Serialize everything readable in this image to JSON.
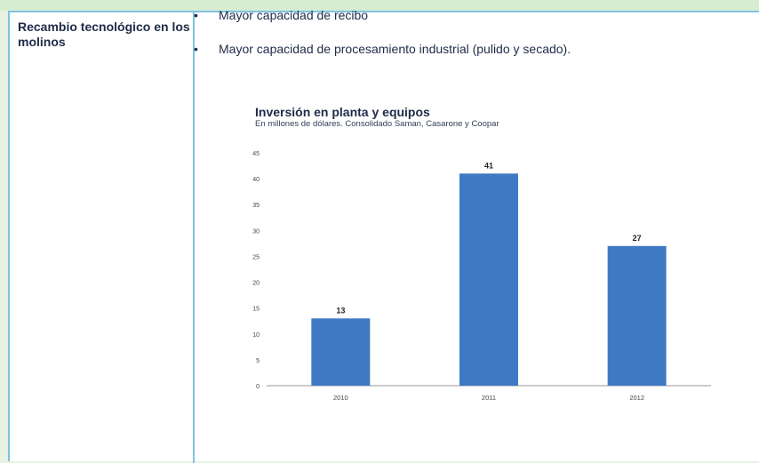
{
  "left_cell": {
    "title": "Recambio tecnológico en los molinos"
  },
  "bullets": [
    "Mayor capacidad de recibo",
    "Mayor capacidad de procesamiento industrial (pulido y secado)."
  ],
  "colors": {
    "bar": "#3f79c4",
    "border": "#7ec3df",
    "background": "#e7f2e3"
  },
  "chart_data": {
    "type": "bar",
    "title": "Inversión en planta y equipos",
    "subtitle": "En millones de dólares. Consolidado Saman, Casarone y Coopar",
    "categories": [
      "2010",
      "2011",
      "2012"
    ],
    "values": [
      13,
      41,
      27
    ],
    "data_labels": [
      "13",
      "41",
      "27"
    ],
    "ylim": [
      0,
      45
    ],
    "yticks": [
      0,
      5,
      10,
      15,
      20,
      25,
      30,
      35,
      40,
      45
    ],
    "xlabel": "",
    "ylabel": "",
    "grid": false,
    "legend": "none"
  }
}
